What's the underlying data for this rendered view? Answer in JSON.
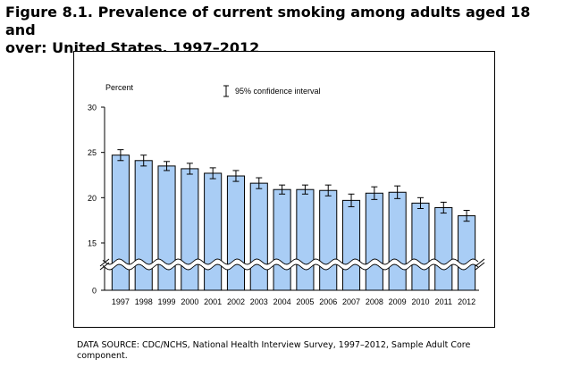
{
  "figure": {
    "title_line1": "Figure 8.1. Prevalence of current smoking among adults aged 18 and",
    "title_line2": "over: United States, 1997–2012",
    "source_line1": "DATA SOURCE: CDC/NCHS, National Health Interview Survey, 1997–2012, Sample Adult Core",
    "source_line2": "component."
  },
  "chart_data": {
    "type": "bar",
    "title": "",
    "ylabel": "Percent",
    "xlabel": "",
    "legend": {
      "label": "95% confidence interval",
      "position": "top-center"
    },
    "categories": [
      "1997",
      "1998",
      "1999",
      "2000",
      "2001",
      "2002",
      "2003",
      "2004",
      "2005",
      "2006",
      "2007",
      "2008",
      "2009",
      "2010",
      "2011",
      "2012"
    ],
    "values": [
      24.7,
      24.1,
      23.5,
      23.2,
      22.7,
      22.4,
      21.6,
      20.9,
      20.9,
      20.8,
      19.7,
      20.5,
      20.6,
      19.4,
      18.9,
      18.0
    ],
    "ci_lower": [
      24.1,
      23.5,
      23.0,
      22.6,
      22.1,
      21.8,
      21.0,
      20.4,
      20.4,
      20.2,
      19.0,
      19.8,
      19.9,
      18.8,
      18.3,
      17.4
    ],
    "ci_upper": [
      25.3,
      24.7,
      24.0,
      23.8,
      23.3,
      23.0,
      22.2,
      21.4,
      21.4,
      21.4,
      20.4,
      21.2,
      21.3,
      20.0,
      19.5,
      18.6
    ],
    "y_ticks": [
      0,
      15,
      20,
      25,
      30
    ],
    "ylim": [
      0,
      30
    ],
    "axis_break": true,
    "bar_color": "#a9cdf5",
    "grid": false
  }
}
